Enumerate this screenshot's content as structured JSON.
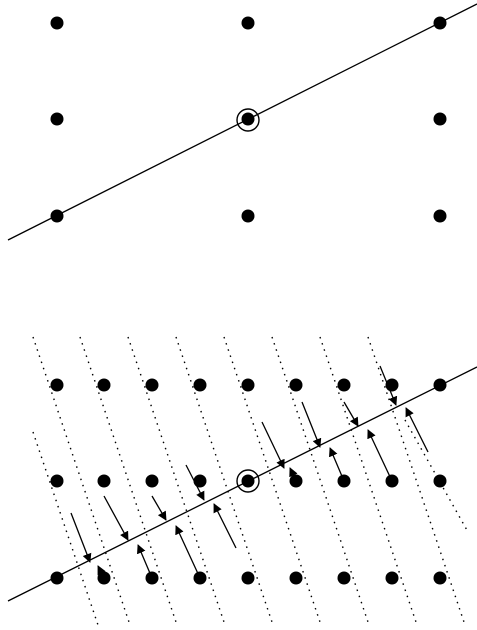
{
  "figure": {
    "panels": [
      {
        "id": "top",
        "description_key": "lattice-with-line",
        "lattice": {
          "columns": 3,
          "rows": 3
        },
        "highlighted_point": {
          "column": 1,
          "row": 1
        },
        "line": {
          "through": "highlighted_point"
        }
      },
      {
        "id": "bottom",
        "description_key": "lattice-with-line-and-projections",
        "lattice": {
          "columns": 9,
          "rows": 3
        },
        "highlighted_point": {
          "column": 4,
          "row": 1
        },
        "line": {
          "through": "highlighted_point"
        },
        "dotted_direction_lines": 10,
        "projected_points": [
          {
            "column": 0,
            "row": 2
          },
          {
            "column": 1,
            "row": 1
          },
          {
            "column": 2,
            "row": 1
          },
          {
            "column": 3,
            "row": 1
          },
          {
            "column": 5,
            "row": 0
          },
          {
            "column": 6,
            "row": 0
          },
          {
            "column": 7,
            "row": 0
          },
          {
            "column": 8,
            "row": 0
          },
          {
            "column": 1,
            "row": 2
          },
          {
            "column": 2,
            "row": 2
          },
          {
            "column": 5,
            "row": 1
          },
          {
            "column": 6,
            "row": 1
          },
          {
            "column": 7,
            "row": 1
          },
          {
            "column": 8,
            "row": 1
          },
          {
            "column": 3,
            "row": 0
          }
        ]
      }
    ],
    "colors": {
      "ink": "#000000",
      "background": "#ffffff"
    }
  }
}
